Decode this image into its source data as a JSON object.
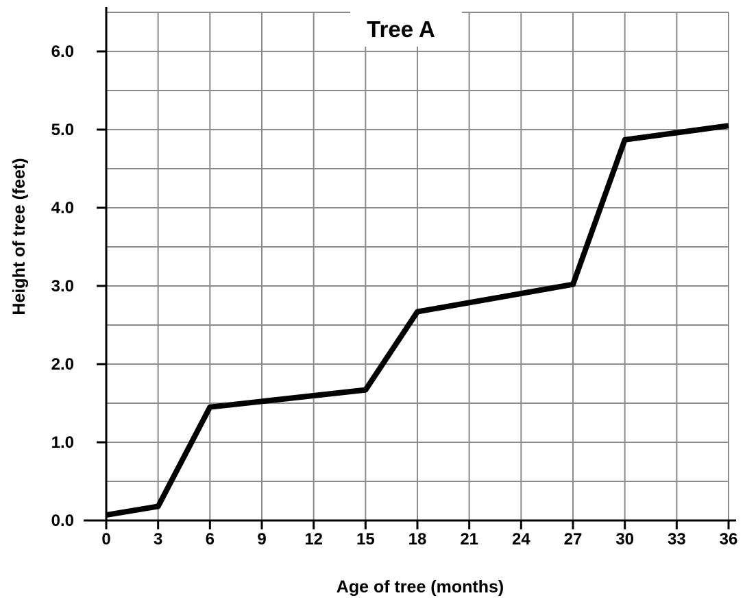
{
  "chart_data": {
    "type": "line",
    "title": "Tree A",
    "xlabel": "Age of tree (months)",
    "ylabel": "Height of tree (feet)",
    "xlim": [
      0,
      36
    ],
    "ylim": [
      0,
      6.5
    ],
    "x_ticks": [
      0,
      3,
      6,
      9,
      12,
      15,
      18,
      21,
      24,
      27,
      30,
      33,
      36
    ],
    "x_tick_labels": [
      "0",
      "3",
      "6",
      "9",
      "12",
      "15",
      "18",
      "21",
      "24",
      "27",
      "30",
      "33",
      "36"
    ],
    "y_ticks": [
      0,
      1,
      2,
      3,
      4,
      5,
      6
    ],
    "y_tick_labels": [
      "0.0",
      "1.0",
      "2.0",
      "3.0",
      "4.0",
      "5.0",
      "6.0"
    ],
    "grid": true,
    "x_grid_step": 3,
    "y_grid_step": 0.5,
    "series": [
      {
        "x": [
          0,
          3,
          6,
          15,
          18,
          27,
          30,
          36
        ],
        "y": [
          0.07,
          0.18,
          1.45,
          1.67,
          2.67,
          3.02,
          4.87,
          5.05
        ]
      }
    ],
    "colors": {
      "line": "#000000",
      "grid": "#8c8c8c",
      "axis": "#000000"
    }
  }
}
